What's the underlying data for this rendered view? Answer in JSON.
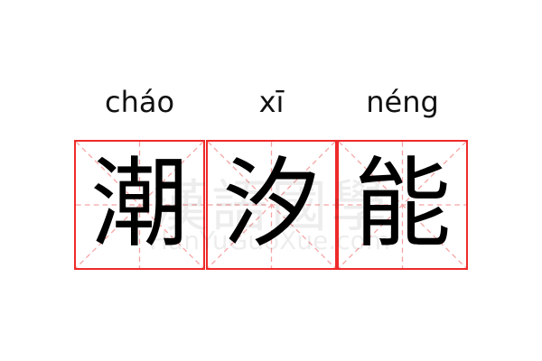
{
  "pinyin": [
    "cháo",
    "xī",
    "néng"
  ],
  "characters": [
    "潮",
    "汐",
    "能"
  ],
  "watermark": {
    "logo": "漢語國學",
    "site": "HanYuGuoXue.com"
  },
  "colors": {
    "border": "#ee2a2a",
    "guide": "#f5a3a3",
    "text": "#000000"
  }
}
